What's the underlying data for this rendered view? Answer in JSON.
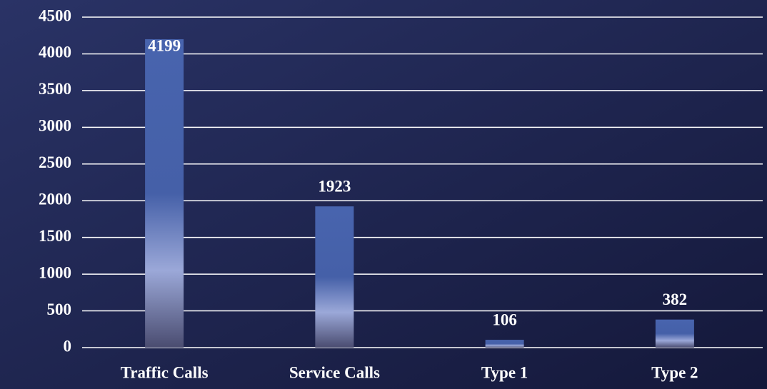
{
  "chart_data": {
    "type": "bar",
    "categories": [
      "Traffic Calls",
      "Service Calls",
      "Type 1",
      "Type 2"
    ],
    "values": [
      4199,
      1923,
      106,
      382
    ],
    "color": "#4763ad",
    "ylim": [
      0,
      4500
    ],
    "yticks": [
      0,
      500,
      1000,
      1500,
      2000,
      2500,
      3000,
      3500,
      4000,
      4500
    ],
    "grid": true
  }
}
